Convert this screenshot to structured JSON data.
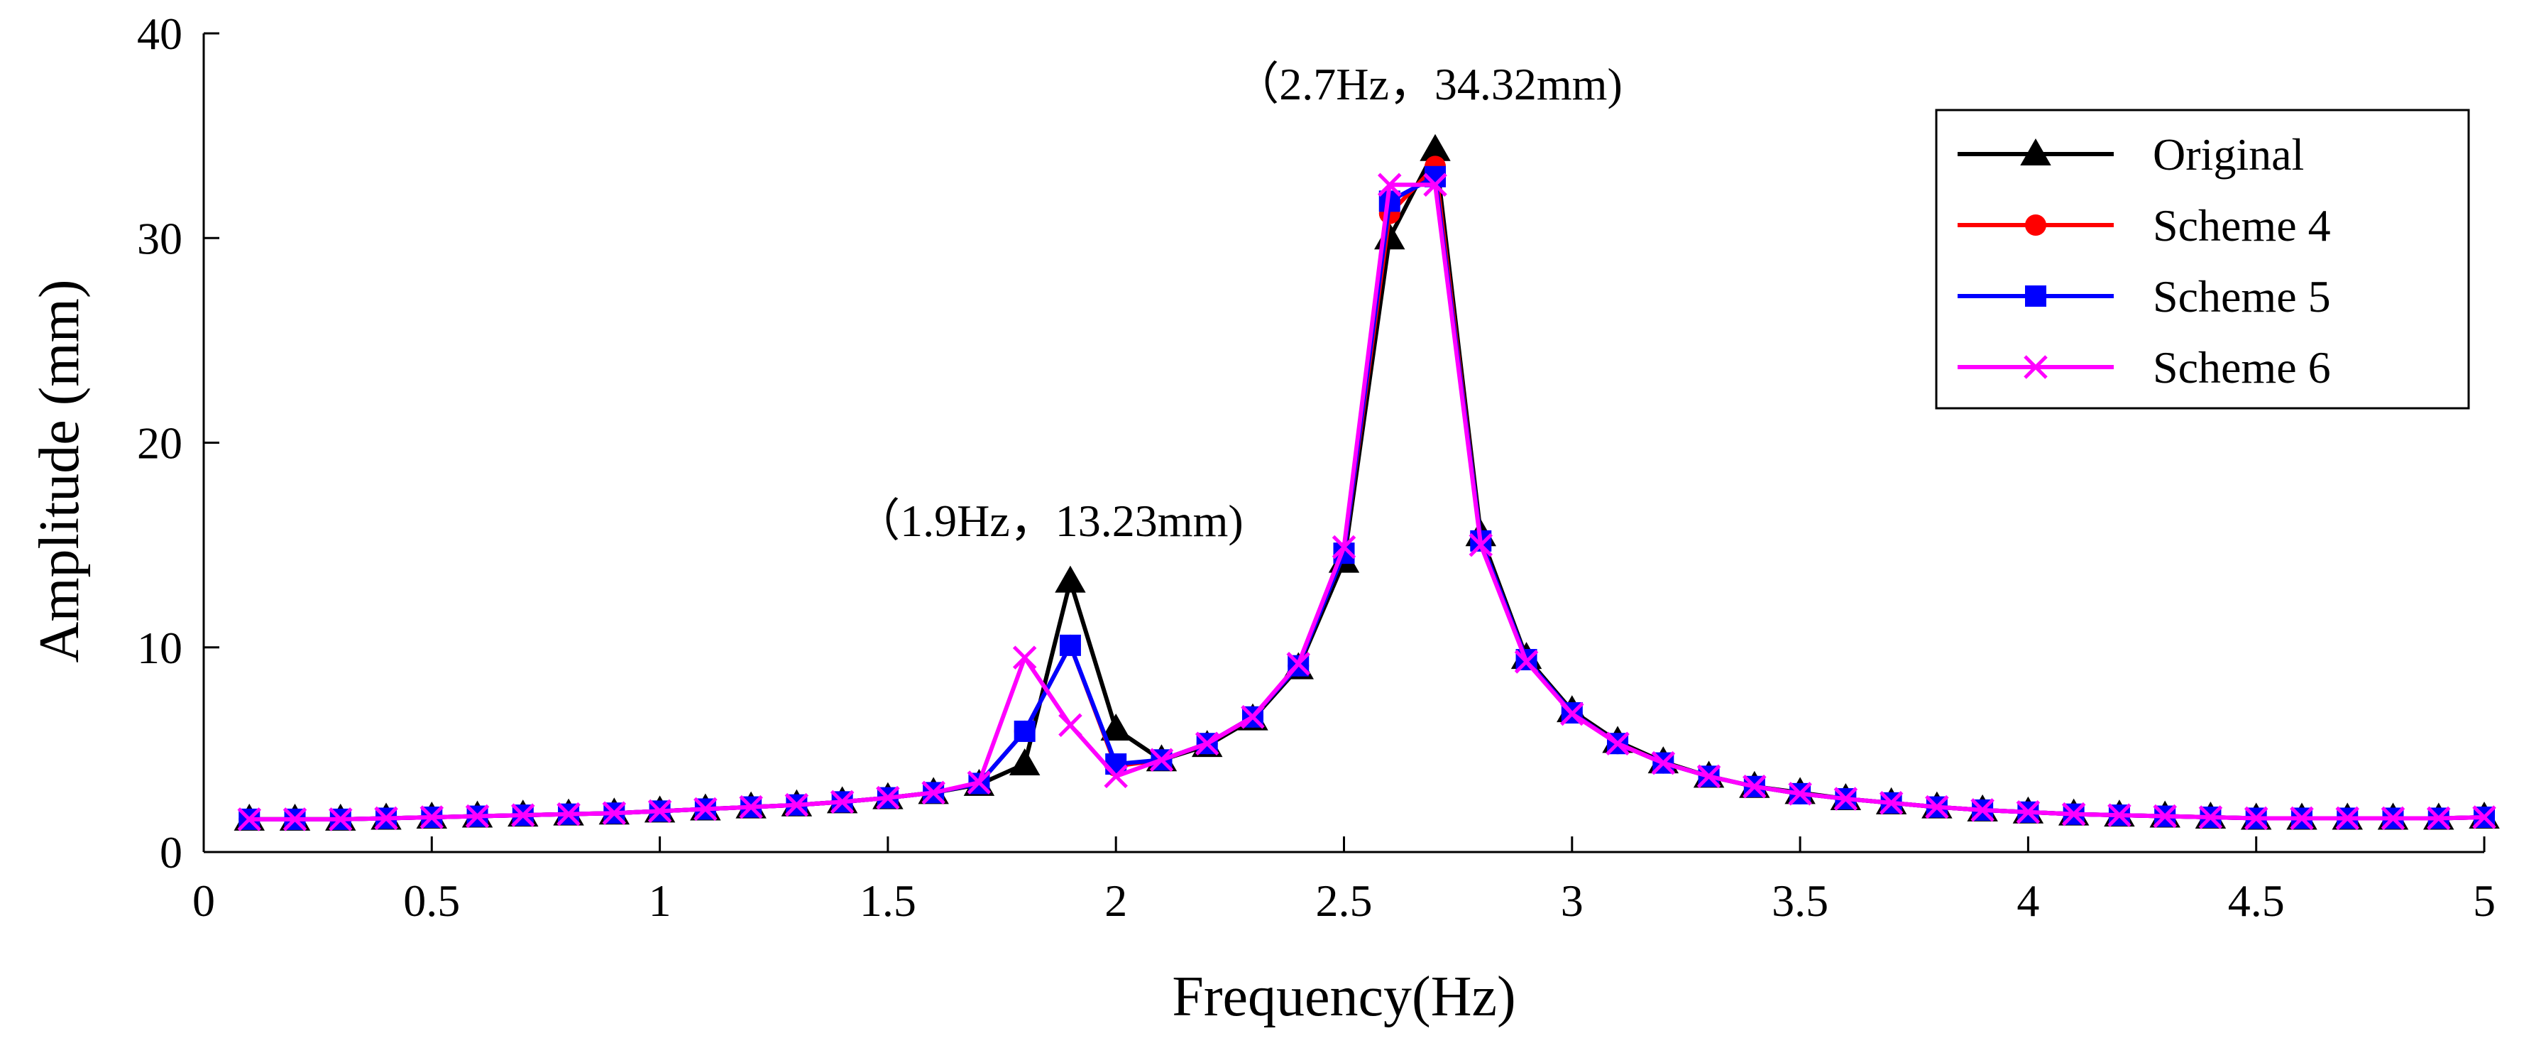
{
  "chart_data": {
    "type": "line",
    "title": "",
    "xlabel": "Frequency(Hz)",
    "ylabel": "Amplitude (mm)",
    "xlim": [
      0,
      5
    ],
    "ylim": [
      0,
      40
    ],
    "xticks": [
      0,
      0.5,
      1,
      1.5,
      2,
      2.5,
      3,
      3.5,
      4,
      4.5,
      5
    ],
    "xtick_labels": [
      "0",
      "0.5",
      "1",
      "1.5",
      "2",
      "2.5",
      "3",
      "3.5",
      "4",
      "4.5",
      "5"
    ],
    "yticks": [
      0,
      10,
      20,
      30,
      40
    ],
    "ytick_labels": [
      "0",
      "10",
      "20",
      "30",
      "40"
    ],
    "grid": false,
    "legend_position": "top-right",
    "x": [
      0.1,
      0.2,
      0.3,
      0.4,
      0.5,
      0.6,
      0.7,
      0.8,
      0.9,
      1.0,
      1.1,
      1.2,
      1.3,
      1.4,
      1.5,
      1.6,
      1.7,
      1.8,
      1.9,
      2.0,
      2.1,
      2.2,
      2.3,
      2.4,
      2.5,
      2.6,
      2.7,
      2.8,
      2.9,
      3.0,
      3.1,
      3.2,
      3.3,
      3.4,
      3.5,
      3.6,
      3.7,
      3.8,
      3.9,
      4.0,
      4.1,
      4.2,
      4.3,
      4.4,
      4.5,
      4.6,
      4.7,
      4.8,
      4.9,
      5.0
    ],
    "series": [
      {
        "name": "Original",
        "color": "#000000",
        "marker": "triangle",
        "values": [
          1.6,
          1.6,
          1.6,
          1.65,
          1.7,
          1.75,
          1.8,
          1.85,
          1.9,
          2.0,
          2.1,
          2.2,
          2.3,
          2.45,
          2.65,
          2.9,
          3.3,
          4.3,
          13.23,
          6.0,
          4.5,
          5.2,
          6.5,
          9.0,
          14.2,
          30.0,
          34.32,
          15.5,
          9.5,
          6.9,
          5.4,
          4.4,
          3.7,
          3.2,
          2.9,
          2.6,
          2.4,
          2.2,
          2.05,
          1.95,
          1.85,
          1.8,
          1.75,
          1.7,
          1.65,
          1.65,
          1.65,
          1.65,
          1.65,
          1.7
        ]
      },
      {
        "name": "Scheme 4",
        "color": "#ff0000",
        "marker": "circle",
        "values": [
          1.6,
          1.6,
          1.6,
          1.65,
          1.7,
          1.75,
          1.8,
          1.85,
          1.9,
          2.0,
          2.1,
          2.2,
          2.3,
          2.45,
          2.65,
          2.9,
          3.35,
          5.9,
          10.1,
          4.2,
          4.5,
          5.3,
          6.6,
          9.1,
          14.6,
          31.2,
          33.5,
          15.2,
          9.4,
          6.8,
          5.3,
          4.35,
          3.7,
          3.2,
          2.85,
          2.6,
          2.4,
          2.2,
          2.05,
          1.95,
          1.85,
          1.8,
          1.75,
          1.7,
          1.65,
          1.65,
          1.65,
          1.65,
          1.65,
          1.7
        ]
      },
      {
        "name": "Scheme 5",
        "color": "#0000ff",
        "marker": "square",
        "values": [
          1.6,
          1.6,
          1.6,
          1.65,
          1.7,
          1.75,
          1.8,
          1.85,
          1.9,
          2.0,
          2.1,
          2.2,
          2.3,
          2.45,
          2.65,
          2.9,
          3.35,
          5.9,
          10.1,
          4.3,
          4.5,
          5.3,
          6.6,
          9.1,
          14.6,
          31.8,
          33.0,
          15.2,
          9.4,
          6.8,
          5.3,
          4.35,
          3.7,
          3.2,
          2.85,
          2.6,
          2.4,
          2.2,
          2.05,
          1.95,
          1.85,
          1.8,
          1.75,
          1.7,
          1.65,
          1.65,
          1.65,
          1.65,
          1.65,
          1.7
        ]
      },
      {
        "name": "Scheme 6",
        "color": "#ff00ff",
        "marker": "x",
        "values": [
          1.6,
          1.6,
          1.6,
          1.65,
          1.7,
          1.75,
          1.8,
          1.85,
          1.9,
          2.0,
          2.1,
          2.2,
          2.3,
          2.45,
          2.65,
          2.9,
          3.4,
          9.5,
          6.2,
          3.7,
          4.5,
          5.3,
          6.6,
          9.2,
          14.9,
          32.6,
          32.6,
          15.0,
          9.3,
          6.75,
          5.3,
          4.35,
          3.7,
          3.2,
          2.85,
          2.6,
          2.4,
          2.2,
          2.05,
          1.95,
          1.85,
          1.8,
          1.75,
          1.7,
          1.65,
          1.65,
          1.65,
          1.65,
          1.65,
          1.7
        ]
      }
    ],
    "annotations": [
      {
        "text": "（2.7Hz，34.32mm)",
        "x": 2.7,
        "y": 34.32
      },
      {
        "text": "（1.9Hz，13.23mm)",
        "x": 1.9,
        "y": 13.23
      }
    ]
  }
}
